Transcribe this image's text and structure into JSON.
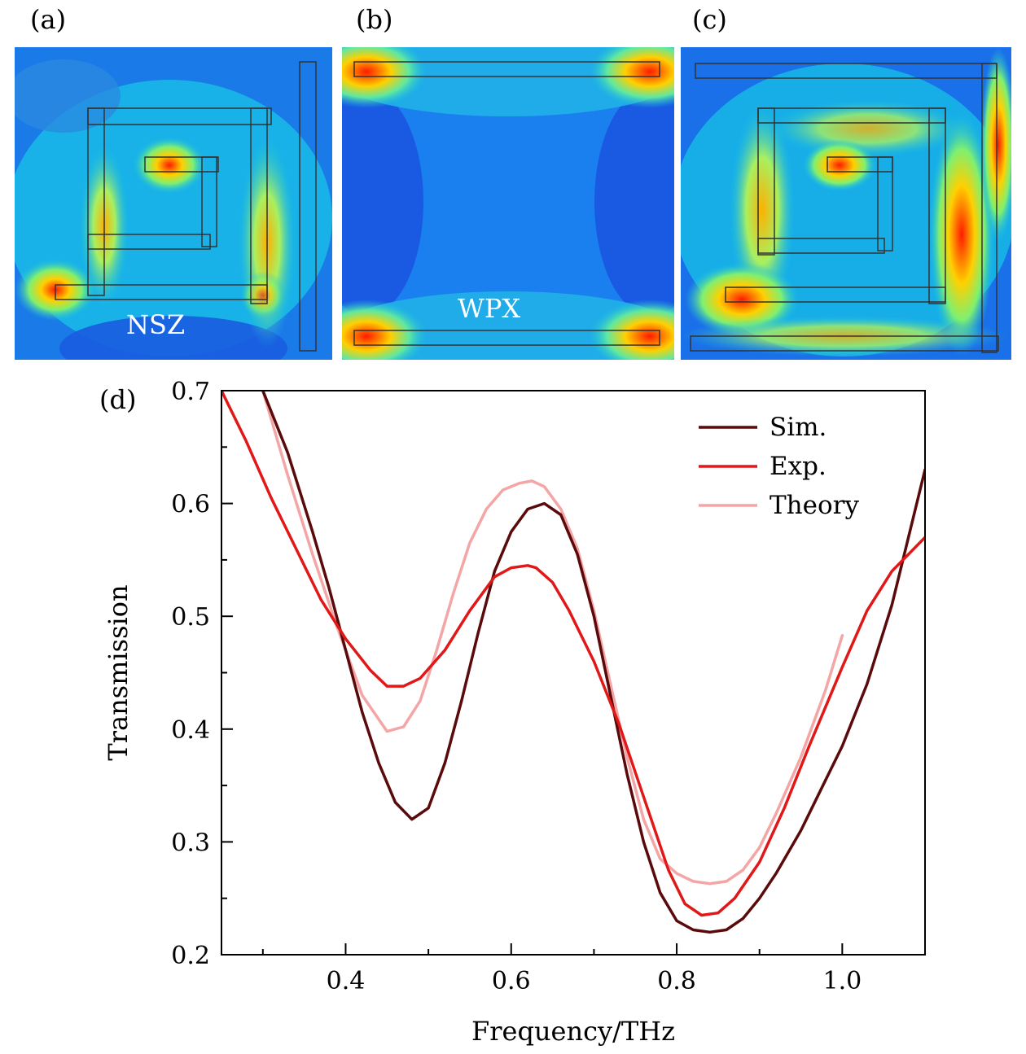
{
  "panels": [
    {
      "label": "(a)",
      "overlay": "NSZ"
    },
    {
      "label": "(b)",
      "overlay": "WPX"
    },
    {
      "label": "(c)",
      "overlay": ""
    }
  ],
  "colors": {
    "sim": "#5a0a0a",
    "exp": "#e01818",
    "theory": "#f4a5a5",
    "field_low": "#1a4fe0",
    "field_mid": "#18c0e0",
    "field_high": "#ff1a00"
  },
  "chart_data": {
    "type": "line",
    "panel_label": "(d)",
    "xlabel": "Frequency/THz",
    "ylabel": "Transmission",
    "xlim": [
      0.25,
      1.1
    ],
    "ylim": [
      0.2,
      0.7
    ],
    "x_ticks": [
      "0.4",
      "0.6",
      "0.8",
      "1.0"
    ],
    "x_tick_values": [
      0.4,
      0.6,
      0.8,
      1.0
    ],
    "y_ticks": [
      "0.2",
      "0.3",
      "0.4",
      "0.5",
      "0.6",
      "0.7"
    ],
    "y_tick_values": [
      0.2,
      0.3,
      0.4,
      0.5,
      0.6,
      0.7
    ],
    "legend_position": "top-right",
    "series": [
      {
        "name": "Sim.",
        "color": "#5a0a0a",
        "x": [
          0.3,
          0.33,
          0.36,
          0.38,
          0.4,
          0.42,
          0.44,
          0.46,
          0.48,
          0.5,
          0.52,
          0.54,
          0.56,
          0.58,
          0.6,
          0.62,
          0.64,
          0.66,
          0.68,
          0.7,
          0.72,
          0.74,
          0.76,
          0.78,
          0.8,
          0.82,
          0.84,
          0.86,
          0.88,
          0.9,
          0.92,
          0.95,
          0.98,
          1.0,
          1.03,
          1.06,
          1.1
        ],
        "y": [
          0.7,
          0.645,
          0.575,
          0.525,
          0.47,
          0.415,
          0.37,
          0.335,
          0.32,
          0.33,
          0.37,
          0.425,
          0.485,
          0.54,
          0.575,
          0.595,
          0.6,
          0.59,
          0.555,
          0.5,
          0.43,
          0.36,
          0.3,
          0.255,
          0.23,
          0.222,
          0.22,
          0.222,
          0.232,
          0.25,
          0.272,
          0.31,
          0.355,
          0.385,
          0.44,
          0.51,
          0.63
        ]
      },
      {
        "name": "Exp.",
        "color": "#e01818",
        "x": [
          0.25,
          0.28,
          0.31,
          0.34,
          0.37,
          0.4,
          0.43,
          0.45,
          0.47,
          0.49,
          0.52,
          0.55,
          0.58,
          0.6,
          0.62,
          0.63,
          0.65,
          0.67,
          0.7,
          0.73,
          0.76,
          0.79,
          0.81,
          0.83,
          0.85,
          0.87,
          0.9,
          0.93,
          0.96,
          1.0,
          1.03,
          1.06,
          1.1
        ],
        "y": [
          0.7,
          0.655,
          0.605,
          0.56,
          0.515,
          0.48,
          0.452,
          0.438,
          0.438,
          0.445,
          0.47,
          0.505,
          0.535,
          0.543,
          0.545,
          0.543,
          0.53,
          0.505,
          0.46,
          0.405,
          0.34,
          0.275,
          0.245,
          0.235,
          0.237,
          0.25,
          0.282,
          0.33,
          0.385,
          0.455,
          0.505,
          0.54,
          0.57
        ]
      },
      {
        "name": "Theory",
        "color": "#f4a5a5",
        "x": [
          0.3,
          0.33,
          0.36,
          0.39,
          0.42,
          0.45,
          0.47,
          0.49,
          0.51,
          0.53,
          0.55,
          0.57,
          0.59,
          0.61,
          0.625,
          0.64,
          0.66,
          0.68,
          0.7,
          0.72,
          0.74,
          0.76,
          0.78,
          0.8,
          0.82,
          0.84,
          0.86,
          0.88,
          0.9,
          0.92,
          0.95,
          0.98,
          1.0
        ],
        "y": [
          0.7,
          0.625,
          0.555,
          0.49,
          0.43,
          0.398,
          0.402,
          0.425,
          0.47,
          0.52,
          0.565,
          0.595,
          0.612,
          0.618,
          0.62,
          0.615,
          0.595,
          0.56,
          0.505,
          0.44,
          0.375,
          0.32,
          0.285,
          0.272,
          0.265,
          0.263,
          0.265,
          0.275,
          0.295,
          0.325,
          0.375,
          0.435,
          0.483
        ]
      }
    ]
  }
}
